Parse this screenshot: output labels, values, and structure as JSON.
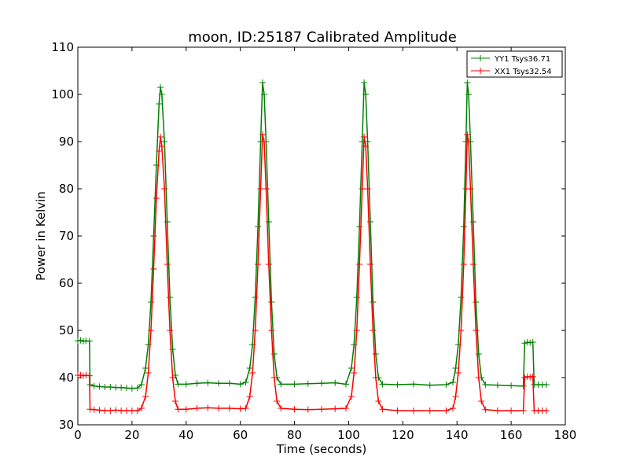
{
  "chart_data": {
    "type": "line",
    "title": "moon, ID:25187 Calibrated Amplitude",
    "xlabel": "Time (seconds)",
    "ylabel": "Power in Kelvin",
    "xlim": [
      0,
      180
    ],
    "ylim": [
      30,
      110
    ],
    "xticks": [
      0,
      20,
      40,
      60,
      80,
      100,
      120,
      140,
      160,
      180
    ],
    "yticks": [
      30,
      40,
      50,
      60,
      70,
      80,
      90,
      100,
      110
    ],
    "grid": false,
    "legend_position": "top-right",
    "series": [
      {
        "name": "YY1 Tsys36.71",
        "color": "#008000",
        "marker": "+",
        "points": [
          [
            0.0,
            47.8
          ],
          [
            1.0,
            47.9
          ],
          [
            2.0,
            47.7
          ],
          [
            3.0,
            47.8
          ],
          [
            4.3,
            47.7
          ],
          [
            4.5,
            38.5
          ],
          [
            6.0,
            38.2
          ],
          [
            8.0,
            38.1
          ],
          [
            10.0,
            38.0
          ],
          [
            12.0,
            38.0
          ],
          [
            14.0,
            37.9
          ],
          [
            16.0,
            37.9
          ],
          [
            18.0,
            37.8
          ],
          [
            20.0,
            37.7
          ],
          [
            22.0,
            37.8
          ],
          [
            23.5,
            38.5
          ],
          [
            25.0,
            42.0
          ],
          [
            26.0,
            47.0
          ],
          [
            27.0,
            56.0
          ],
          [
            28.0,
            70.0
          ],
          [
            29.0,
            85.0
          ],
          [
            30.0,
            98.0
          ],
          [
            30.5,
            101.5
          ],
          [
            31.0,
            100.0
          ],
          [
            32.0,
            90.0
          ],
          [
            33.0,
            73.0
          ],
          [
            34.0,
            57.0
          ],
          [
            35.0,
            46.0
          ],
          [
            36.0,
            40.5
          ],
          [
            37.0,
            38.6
          ],
          [
            40.0,
            38.6
          ],
          [
            44.0,
            38.8
          ],
          [
            48.0,
            38.9
          ],
          [
            52.0,
            38.8
          ],
          [
            56.0,
            38.8
          ],
          [
            60.0,
            38.6
          ],
          [
            62.0,
            39.0
          ],
          [
            63.5,
            42.0
          ],
          [
            64.5,
            47.0
          ],
          [
            65.5,
            57.0
          ],
          [
            66.5,
            72.0
          ],
          [
            67.5,
            90.0
          ],
          [
            68.2,
            102.5
          ],
          [
            68.8,
            100.0
          ],
          [
            69.5,
            90.0
          ],
          [
            70.5,
            73.0
          ],
          [
            71.5,
            56.0
          ],
          [
            72.5,
            45.0
          ],
          [
            73.5,
            40.0
          ],
          [
            75.0,
            38.6
          ],
          [
            80.0,
            38.6
          ],
          [
            85.0,
            38.7
          ],
          [
            90.0,
            38.8
          ],
          [
            95.0,
            38.9
          ],
          [
            99.0,
            38.6
          ],
          [
            101.0,
            42.0
          ],
          [
            102.0,
            47.0
          ],
          [
            103.0,
            57.0
          ],
          [
            104.0,
            72.0
          ],
          [
            105.0,
            90.0
          ],
          [
            105.7,
            102.5
          ],
          [
            106.3,
            100.0
          ],
          [
            107.0,
            90.0
          ],
          [
            108.0,
            73.0
          ],
          [
            109.0,
            56.0
          ],
          [
            110.0,
            45.0
          ],
          [
            111.0,
            40.0
          ],
          [
            112.5,
            38.6
          ],
          [
            118.0,
            38.5
          ],
          [
            124.0,
            38.6
          ],
          [
            130.0,
            38.4
          ],
          [
            136.0,
            38.5
          ],
          [
            138.5,
            39.0
          ],
          [
            139.5,
            42.0
          ],
          [
            140.5,
            47.0
          ],
          [
            141.5,
            57.0
          ],
          [
            142.5,
            72.0
          ],
          [
            143.3,
            90.0
          ],
          [
            143.8,
            102.5
          ],
          [
            144.3,
            100.0
          ],
          [
            145.0,
            90.0
          ],
          [
            146.0,
            73.0
          ],
          [
            147.0,
            56.0
          ],
          [
            148.0,
            45.0
          ],
          [
            149.0,
            40.0
          ],
          [
            150.5,
            38.5
          ],
          [
            155.0,
            38.4
          ],
          [
            160.0,
            38.3
          ],
          [
            164.5,
            38.2
          ],
          [
            165.0,
            47.3
          ],
          [
            166.0,
            47.5
          ],
          [
            167.0,
            47.4
          ],
          [
            168.0,
            47.5
          ],
          [
            168.5,
            38.5
          ],
          [
            170.0,
            38.5
          ],
          [
            171.5,
            38.5
          ],
          [
            173.0,
            38.5
          ]
        ]
      },
      {
        "name": "XX1 Tsys32.54",
        "color": "#ff0000",
        "marker": "+",
        "points": [
          [
            0.0,
            40.5
          ],
          [
            1.0,
            40.5
          ],
          [
            2.0,
            40.4
          ],
          [
            3.0,
            40.5
          ],
          [
            4.3,
            40.4
          ],
          [
            4.5,
            33.3
          ],
          [
            6.0,
            33.2
          ],
          [
            8.0,
            33.1
          ],
          [
            10.0,
            33.0
          ],
          [
            12.0,
            33.0
          ],
          [
            14.0,
            33.1
          ],
          [
            16.0,
            33.0
          ],
          [
            18.0,
            33.0
          ],
          [
            20.0,
            33.0
          ],
          [
            22.0,
            33.0
          ],
          [
            23.5,
            33.5
          ],
          [
            25.0,
            36.0
          ],
          [
            26.0,
            41.0
          ],
          [
            27.0,
            50.0
          ],
          [
            28.0,
            63.0
          ],
          [
            29.0,
            78.0
          ],
          [
            30.0,
            88.0
          ],
          [
            30.5,
            91.0
          ],
          [
            31.0,
            89.0
          ],
          [
            32.0,
            80.0
          ],
          [
            33.0,
            64.0
          ],
          [
            34.0,
            50.0
          ],
          [
            35.0,
            40.0
          ],
          [
            36.0,
            35.0
          ],
          [
            37.0,
            33.3
          ],
          [
            40.0,
            33.3
          ],
          [
            44.0,
            33.5
          ],
          [
            48.0,
            33.6
          ],
          [
            52.0,
            33.5
          ],
          [
            56.0,
            33.5
          ],
          [
            60.0,
            33.4
          ],
          [
            62.0,
            33.5
          ],
          [
            63.5,
            36.0
          ],
          [
            64.5,
            41.0
          ],
          [
            65.5,
            50.0
          ],
          [
            66.5,
            64.0
          ],
          [
            67.5,
            80.0
          ],
          [
            68.2,
            91.5
          ],
          [
            68.8,
            90.0
          ],
          [
            69.5,
            80.0
          ],
          [
            70.5,
            64.0
          ],
          [
            71.5,
            50.0
          ],
          [
            72.5,
            40.0
          ],
          [
            73.5,
            35.0
          ],
          [
            75.0,
            33.5
          ],
          [
            80.0,
            33.3
          ],
          [
            85.0,
            33.2
          ],
          [
            90.0,
            33.3
          ],
          [
            95.0,
            33.4
          ],
          [
            99.0,
            33.5
          ],
          [
            101.0,
            36.0
          ],
          [
            102.0,
            41.0
          ],
          [
            103.0,
            50.0
          ],
          [
            104.0,
            64.0
          ],
          [
            105.0,
            80.0
          ],
          [
            105.7,
            91.0
          ],
          [
            106.3,
            89.0
          ],
          [
            107.0,
            80.0
          ],
          [
            108.0,
            64.0
          ],
          [
            109.0,
            50.0
          ],
          [
            110.0,
            40.0
          ],
          [
            111.0,
            35.0
          ],
          [
            112.5,
            33.3
          ],
          [
            118.0,
            33.0
          ],
          [
            124.0,
            33.0
          ],
          [
            130.0,
            33.0
          ],
          [
            136.0,
            33.0
          ],
          [
            138.5,
            33.5
          ],
          [
            139.5,
            36.0
          ],
          [
            140.5,
            41.0
          ],
          [
            141.5,
            50.0
          ],
          [
            142.5,
            64.0
          ],
          [
            143.3,
            80.0
          ],
          [
            143.8,
            91.5
          ],
          [
            144.3,
            90.0
          ],
          [
            145.0,
            80.0
          ],
          [
            146.0,
            64.0
          ],
          [
            147.0,
            50.0
          ],
          [
            148.0,
            40.0
          ],
          [
            149.0,
            35.0
          ],
          [
            150.5,
            33.2
          ],
          [
            155.0,
            33.0
          ],
          [
            160.0,
            33.0
          ],
          [
            164.5,
            33.0
          ],
          [
            165.0,
            40.0
          ],
          [
            166.0,
            40.2
          ],
          [
            167.0,
            40.1
          ],
          [
            168.0,
            40.2
          ],
          [
            168.5,
            33.0
          ],
          [
            170.0,
            33.0
          ],
          [
            171.5,
            33.0
          ],
          [
            173.0,
            33.0
          ]
        ]
      }
    ]
  }
}
